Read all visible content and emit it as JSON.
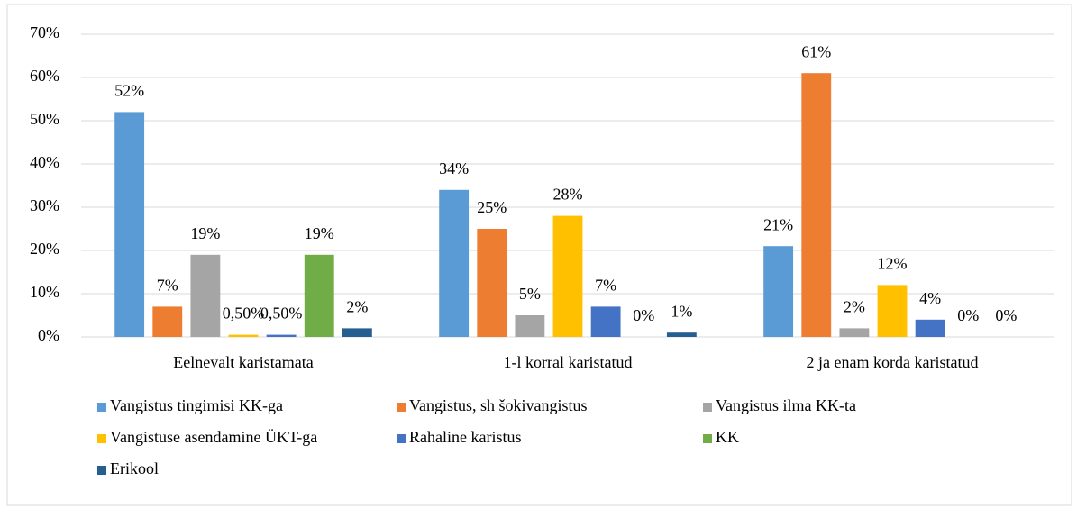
{
  "chart_data": {
    "type": "bar",
    "categories": [
      "Eelnevalt karistamata",
      "1-l korral karistatud",
      "2 ja enam korda karistatud"
    ],
    "series": [
      {
        "name": "Vangistus tingimisi KK-ga",
        "color": "#5b9bd5",
        "values": [
          52,
          34,
          21
        ],
        "value_labels": [
          "52%",
          "34%",
          "21%"
        ]
      },
      {
        "name": "Vangistus, sh šokivangistus",
        "color": "#ed7d31",
        "values": [
          7,
          25,
          61
        ],
        "value_labels": [
          "7%",
          "25%",
          "61%"
        ]
      },
      {
        "name": "Vangistus ilma KK-ta",
        "color": "#a5a5a5",
        "values": [
          19,
          5,
          2
        ],
        "value_labels": [
          "19%",
          "5%",
          "2%"
        ]
      },
      {
        "name": "Vangistuse asendamine ÜKT-ga",
        "color": "#ffc000",
        "values": [
          0.5,
          28,
          12
        ],
        "value_labels": [
          "0,50%",
          "28%",
          "12%"
        ]
      },
      {
        "name": "Rahaline karistus",
        "color": "#4472c4",
        "values": [
          0.5,
          7,
          4
        ],
        "value_labels": [
          "0,50%",
          "7%",
          "4%"
        ]
      },
      {
        "name": "KK",
        "color": "#70ad47",
        "values": [
          19,
          0,
          0
        ],
        "value_labels": [
          "19%",
          "0%",
          "0%"
        ]
      },
      {
        "name": "Erikool",
        "color": "#255e91",
        "values": [
          2,
          1,
          0
        ],
        "value_labels": [
          "2%",
          "1%",
          "0%"
        ]
      }
    ],
    "ylim": [
      0,
      70
    ],
    "yticks": [
      {
        "value": 0,
        "label": "0%"
      },
      {
        "value": 10,
        "label": "10%"
      },
      {
        "value": 20,
        "label": "20%"
      },
      {
        "value": 30,
        "label": "30%"
      },
      {
        "value": 40,
        "label": "40%"
      },
      {
        "value": 50,
        "label": "50%"
      },
      {
        "value": 60,
        "label": "60%"
      },
      {
        "value": 70,
        "label": "70%"
      }
    ],
    "grid": true,
    "legend": "bottom"
  }
}
